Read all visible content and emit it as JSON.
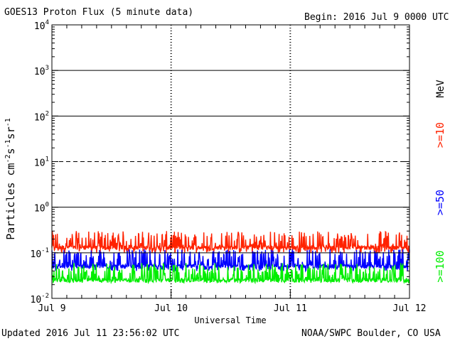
{
  "header": {
    "title": "GOES13 Proton Flux (5 minute data)",
    "begin": "Begin: 2016 Jul 9 0000 UTC"
  },
  "footer": {
    "updated": "Updated 2016 Jul 11 23:56:02 UTC",
    "source": "NOAA/SWPC Boulder, CO USA"
  },
  "colors": {
    "background": "#ffffff",
    "axis": "#000000",
    "ge10": "#ff2200",
    "ge50": "#0000ff",
    "ge100": "#00ee00"
  },
  "chart_data": {
    "type": "line",
    "title": "GOES13 Proton Flux (5 minute data)",
    "xlabel": "Universal Time",
    "ylabel_parts": [
      "Particles cm",
      "-2",
      "s",
      "-1",
      "sr",
      "-1"
    ],
    "y_scale": "log",
    "ylim": [
      0.01,
      10000
    ],
    "y_tick_labels": [
      {
        "value": 10000,
        "base": "10",
        "exp": "4"
      },
      {
        "value": 1000,
        "base": "10",
        "exp": "3"
      },
      {
        "value": 100,
        "base": "10",
        "exp": "2"
      },
      {
        "value": 10,
        "base": "10",
        "exp": "1"
      },
      {
        "value": 1,
        "base": "10",
        "exp": "0"
      },
      {
        "value": 0.1,
        "base": "10",
        "exp": "-1"
      },
      {
        "value": 0.01,
        "base": "10",
        "exp": "-2"
      }
    ],
    "x_range_days": [
      0,
      3
    ],
    "x_tick_labels": [
      {
        "day": 0,
        "label": "Jul 9"
      },
      {
        "day": 1,
        "label": "Jul 10"
      },
      {
        "day": 2,
        "label": "Jul 11"
      },
      {
        "day": 3,
        "label": "Jul 12"
      }
    ],
    "threshold_lines": [
      {
        "value": 1000,
        "style": "solid"
      },
      {
        "value": 100,
        "style": "solid"
      },
      {
        "value": 10,
        "style": "dashed"
      },
      {
        "value": 1,
        "style": "solid"
      },
      {
        "value": 0.1,
        "style": "solid"
      }
    ],
    "right_labels": {
      "unit": "MeV"
    },
    "series": [
      {
        "name": ">=10",
        "color": "#ff2200",
        "baseline": 0.13,
        "noise_low": 0.1,
        "noise_high": 0.3
      },
      {
        "name": ">=50",
        "color": "#0000ff",
        "baseline": 0.05,
        "noise_low": 0.04,
        "noise_high": 0.12
      },
      {
        "name": ">=100",
        "color": "#00ee00",
        "baseline": 0.025,
        "noise_low": 0.022,
        "noise_high": 0.06
      }
    ]
  }
}
